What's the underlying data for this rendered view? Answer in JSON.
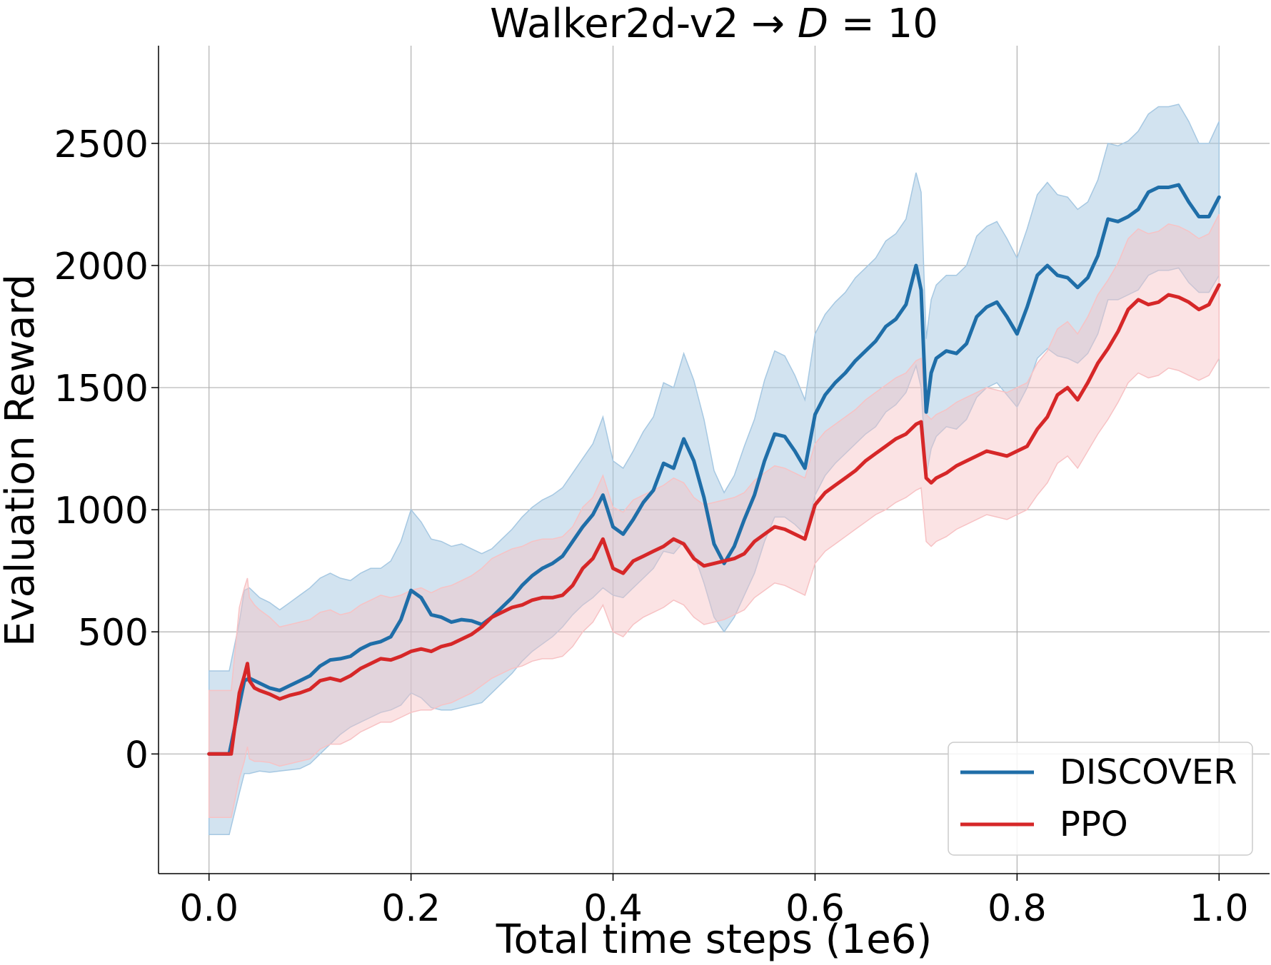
{
  "chart_data": {
    "type": "line",
    "title_prefix": "Walker2d-v2 → ",
    "title_var": "D",
    "title_suffix": " = 10",
    "xlabel": "Total time steps (1e6)",
    "ylabel": "Evaluation Reward",
    "xlim": [
      -0.05,
      1.05
    ],
    "ylim": [
      -490,
      2900
    ],
    "xticks": [
      0.0,
      0.2,
      0.4,
      0.6,
      0.8,
      1.0
    ],
    "xtick_labels": [
      "0.0",
      "0.2",
      "0.4",
      "0.6",
      "0.8",
      "1.0"
    ],
    "yticks": [
      0,
      500,
      1000,
      1500,
      2000,
      2500
    ],
    "ytick_labels": [
      "0",
      "500",
      "1000",
      "1500",
      "2000",
      "2500"
    ],
    "grid": true,
    "legend_position": "bottom-right",
    "series": [
      {
        "name": "DISCOVER",
        "color": "#1f6ea8",
        "band_color": "#a6c8e2",
        "x": [
          0.0,
          0.02,
          0.03,
          0.035,
          0.04,
          0.05,
          0.06,
          0.07,
          0.08,
          0.09,
          0.1,
          0.11,
          0.12,
          0.13,
          0.14,
          0.15,
          0.16,
          0.17,
          0.18,
          0.19,
          0.2,
          0.21,
          0.22,
          0.23,
          0.24,
          0.25,
          0.26,
          0.27,
          0.28,
          0.29,
          0.3,
          0.31,
          0.32,
          0.33,
          0.34,
          0.35,
          0.36,
          0.37,
          0.38,
          0.39,
          0.4,
          0.41,
          0.42,
          0.43,
          0.44,
          0.45,
          0.46,
          0.47,
          0.48,
          0.49,
          0.5,
          0.51,
          0.52,
          0.53,
          0.54,
          0.55,
          0.56,
          0.57,
          0.58,
          0.59,
          0.6,
          0.61,
          0.62,
          0.63,
          0.64,
          0.65,
          0.66,
          0.67,
          0.68,
          0.69,
          0.7,
          0.705,
          0.71,
          0.715,
          0.72,
          0.73,
          0.74,
          0.75,
          0.76,
          0.77,
          0.78,
          0.79,
          0.8,
          0.81,
          0.82,
          0.83,
          0.84,
          0.85,
          0.86,
          0.87,
          0.88,
          0.89,
          0.9,
          0.91,
          0.92,
          0.93,
          0.94,
          0.95,
          0.96,
          0.97,
          0.98,
          0.99,
          1.0
        ],
        "y": [
          0,
          0,
          200,
          300,
          310,
          290,
          270,
          260,
          280,
          300,
          320,
          360,
          385,
          390,
          400,
          430,
          450,
          460,
          480,
          550,
          670,
          640,
          570,
          560,
          540,
          550,
          545,
          530,
          560,
          600,
          640,
          690,
          730,
          760,
          780,
          810,
          870,
          930,
          980,
          1060,
          930,
          900,
          960,
          1030,
          1080,
          1190,
          1170,
          1290,
          1200,
          1050,
          860,
          780,
          850,
          960,
          1060,
          1200,
          1310,
          1300,
          1240,
          1170,
          1390,
          1470,
          1520,
          1560,
          1610,
          1650,
          1690,
          1750,
          1780,
          1840,
          2000,
          1900,
          1400,
          1560,
          1620,
          1650,
          1640,
          1680,
          1790,
          1830,
          1850,
          1790,
          1720,
          1830,
          1960,
          2000,
          1960,
          1950,
          1910,
          1950,
          2040,
          2190,
          2180,
          2200,
          2230,
          2300,
          2320,
          2320,
          2330,
          2260,
          2200,
          2200,
          2280
        ],
        "y_lower": [
          -330,
          -330,
          -160,
          -80,
          -80,
          -70,
          -75,
          -70,
          -65,
          -60,
          -40,
          0,
          40,
          80,
          110,
          130,
          150,
          170,
          180,
          200,
          250,
          230,
          190,
          180,
          180,
          190,
          200,
          210,
          250,
          290,
          330,
          380,
          420,
          450,
          480,
          520,
          570,
          610,
          640,
          680,
          650,
          640,
          680,
          720,
          760,
          830,
          820,
          870,
          820,
          700,
          560,
          500,
          560,
          650,
          740,
          870,
          970,
          970,
          940,
          900,
          1060,
          1140,
          1190,
          1230,
          1270,
          1310,
          1340,
          1400,
          1430,
          1480,
          1590,
          1500,
          1140,
          1250,
          1300,
          1340,
          1330,
          1370,
          1460,
          1500,
          1520,
          1470,
          1420,
          1500,
          1620,
          1660,
          1630,
          1620,
          1600,
          1640,
          1720,
          1860,
          1860,
          1880,
          1900,
          1960,
          1980,
          1980,
          1990,
          1930,
          1890,
          1890,
          1960
        ],
        "y_upper": [
          340,
          340,
          540,
          670,
          680,
          640,
          620,
          590,
          620,
          650,
          680,
          720,
          740,
          720,
          710,
          740,
          760,
          760,
          790,
          870,
          1000,
          950,
          880,
          870,
          850,
          860,
          840,
          820,
          840,
          880,
          920,
          970,
          1010,
          1040,
          1060,
          1090,
          1150,
          1210,
          1270,
          1380,
          1200,
          1170,
          1240,
          1320,
          1380,
          1520,
          1500,
          1640,
          1530,
          1370,
          1160,
          1070,
          1140,
          1260,
          1370,
          1530,
          1650,
          1630,
          1550,
          1450,
          1720,
          1800,
          1850,
          1890,
          1950,
          1990,
          2030,
          2100,
          2130,
          2190,
          2380,
          2300,
          1700,
          1860,
          1920,
          1960,
          1960,
          2000,
          2120,
          2160,
          2180,
          2110,
          2030,
          2150,
          2290,
          2340,
          2290,
          2280,
          2230,
          2260,
          2350,
          2500,
          2490,
          2510,
          2550,
          2620,
          2650,
          2650,
          2660,
          2590,
          2500,
          2500,
          2590
        ]
      },
      {
        "name": "PPO",
        "color": "#d62728",
        "band_color": "#f7c2c4",
        "x": [
          0.0,
          0.022,
          0.03,
          0.035,
          0.038,
          0.04,
          0.045,
          0.05,
          0.06,
          0.07,
          0.08,
          0.09,
          0.1,
          0.11,
          0.12,
          0.13,
          0.14,
          0.15,
          0.16,
          0.17,
          0.18,
          0.19,
          0.2,
          0.21,
          0.22,
          0.23,
          0.24,
          0.25,
          0.26,
          0.27,
          0.28,
          0.29,
          0.3,
          0.31,
          0.32,
          0.33,
          0.34,
          0.35,
          0.36,
          0.37,
          0.38,
          0.39,
          0.4,
          0.41,
          0.42,
          0.43,
          0.44,
          0.45,
          0.46,
          0.47,
          0.48,
          0.49,
          0.5,
          0.51,
          0.52,
          0.53,
          0.54,
          0.55,
          0.56,
          0.57,
          0.58,
          0.59,
          0.6,
          0.61,
          0.62,
          0.63,
          0.64,
          0.65,
          0.66,
          0.67,
          0.68,
          0.69,
          0.7,
          0.705,
          0.71,
          0.715,
          0.72,
          0.73,
          0.74,
          0.75,
          0.76,
          0.77,
          0.78,
          0.79,
          0.8,
          0.81,
          0.82,
          0.83,
          0.84,
          0.85,
          0.86,
          0.87,
          0.88,
          0.89,
          0.9,
          0.91,
          0.92,
          0.93,
          0.94,
          0.95,
          0.96,
          0.97,
          0.98,
          0.99,
          1.0
        ],
        "y": [
          0,
          0,
          250,
          320,
          370,
          300,
          270,
          260,
          245,
          225,
          240,
          250,
          265,
          300,
          310,
          300,
          320,
          350,
          370,
          390,
          385,
          400,
          420,
          430,
          420,
          440,
          450,
          470,
          490,
          520,
          560,
          580,
          600,
          610,
          630,
          640,
          640,
          650,
          690,
          760,
          800,
          880,
          760,
          740,
          790,
          810,
          830,
          850,
          880,
          860,
          800,
          770,
          780,
          790,
          800,
          820,
          870,
          900,
          930,
          920,
          900,
          880,
          1020,
          1070,
          1100,
          1130,
          1160,
          1200,
          1230,
          1260,
          1290,
          1310,
          1350,
          1360,
          1130,
          1110,
          1130,
          1150,
          1180,
          1200,
          1220,
          1240,
          1230,
          1220,
          1240,
          1260,
          1330,
          1380,
          1470,
          1500,
          1450,
          1520,
          1600,
          1660,
          1730,
          1820,
          1860,
          1840,
          1850,
          1880,
          1870,
          1850,
          1820,
          1840,
          1920
        ],
        "y_lower": [
          -260,
          -260,
          -100,
          -30,
          30,
          -20,
          -30,
          -30,
          -35,
          -50,
          -40,
          -30,
          -20,
          20,
          40,
          40,
          60,
          90,
          110,
          130,
          130,
          150,
          170,
          180,
          180,
          200,
          210,
          230,
          250,
          280,
          310,
          330,
          350,
          360,
          380,
          390,
          390,
          400,
          440,
          500,
          540,
          610,
          500,
          480,
          530,
          560,
          580,
          600,
          630,
          610,
          560,
          530,
          540,
          550,
          570,
          590,
          640,
          670,
          700,
          690,
          670,
          650,
          780,
          830,
          860,
          890,
          920,
          950,
          980,
          1000,
          1030,
          1050,
          1080,
          1090,
          870,
          850,
          870,
          890,
          920,
          940,
          960,
          980,
          970,
          960,
          980,
          1000,
          1060,
          1110,
          1190,
          1220,
          1170,
          1240,
          1310,
          1370,
          1440,
          1520,
          1560,
          1540,
          1550,
          1580,
          1570,
          1550,
          1530,
          1550,
          1620
        ],
        "y_upper": [
          260,
          260,
          600,
          680,
          720,
          640,
          610,
          590,
          560,
          520,
          530,
          540,
          550,
          580,
          590,
          570,
          580,
          610,
          630,
          650,
          640,
          650,
          670,
          680,
          660,
          680,
          690,
          710,
          730,
          760,
          800,
          820,
          840,
          850,
          870,
          880,
          880,
          890,
          930,
          1010,
          1050,
          1140,
          1010,
          990,
          1040,
          1060,
          1080,
          1100,
          1130,
          1110,
          1050,
          1020,
          1030,
          1040,
          1050,
          1070,
          1120,
          1150,
          1180,
          1170,
          1150,
          1130,
          1270,
          1320,
          1350,
          1380,
          1410,
          1450,
          1480,
          1510,
          1540,
          1560,
          1610,
          1620,
          1390,
          1370,
          1390,
          1410,
          1440,
          1460,
          1480,
          1500,
          1490,
          1480,
          1500,
          1520,
          1600,
          1650,
          1740,
          1770,
          1720,
          1790,
          1880,
          1940,
          2010,
          2110,
          2150,
          2130,
          2140,
          2170,
          2160,
          2140,
          2110,
          2130,
          2210
        ]
      }
    ]
  }
}
